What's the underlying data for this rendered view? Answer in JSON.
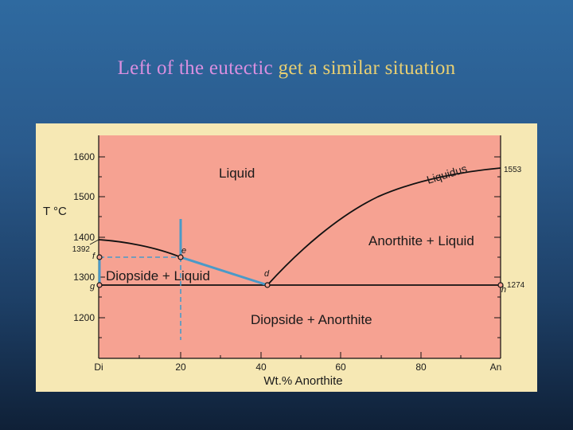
{
  "slide": {
    "title_part1": "Left of the eutectic",
    "title_part2": " get a similar situation"
  },
  "diagram": {
    "y_axis_label": "T °C",
    "x_axis_label": "Wt.% Anorthite",
    "y_ticks": [
      "1600",
      "1500",
      "1400",
      "1300",
      "1200"
    ],
    "x_ticks": [
      "Di",
      "20",
      "40",
      "60",
      "80",
      "An"
    ],
    "temp_1392": "1392",
    "temp_1553": "1553",
    "temp_1274": "1274",
    "fields": {
      "liquid": "Liquid",
      "liquidus": "Liquidus",
      "anorthite_liquid": "Anorthite + Liquid",
      "diopside_liquid": "Diopside + Liquid",
      "diopside_anorthite": "Diopside + Anorthite"
    },
    "points": {
      "f": "f",
      "e": "e",
      "d": "d",
      "g": "g",
      "h": "h"
    },
    "colors": {
      "field": "#f6a292",
      "frame": "#f6e8b4",
      "highlight": "#4a9ac8",
      "curve": "#111111"
    }
  }
}
